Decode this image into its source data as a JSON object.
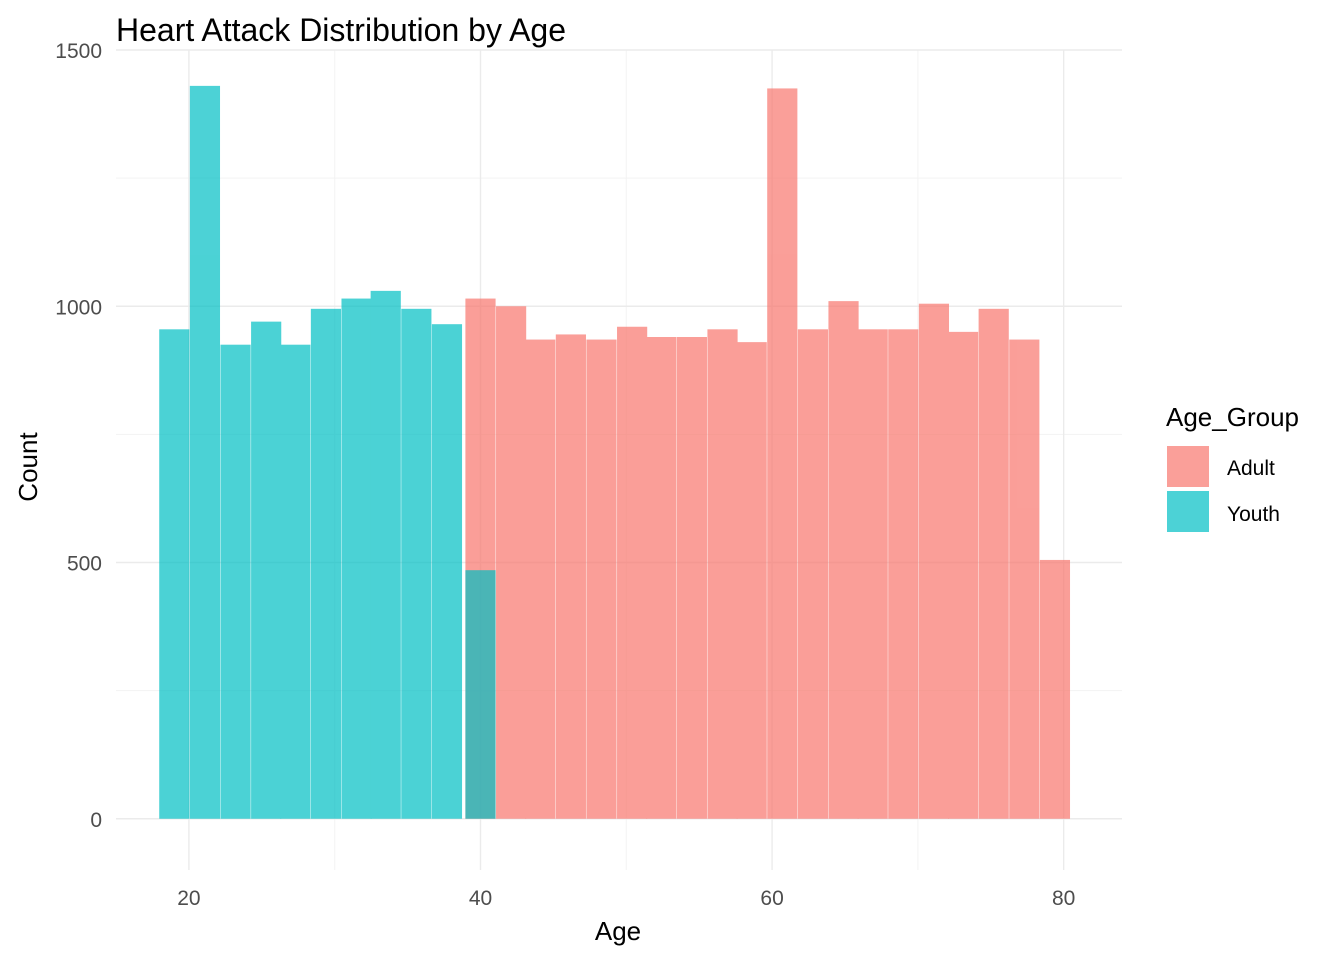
{
  "chart_data": {
    "type": "bar",
    "subtype": "stacked-histogram",
    "title": "Heart Attack Distribution by Age",
    "xlabel": "Age",
    "ylabel": "Count",
    "xlim": [
      15,
      84
    ],
    "ylim": [
      -100,
      1500
    ],
    "x_ticks": [
      20,
      40,
      60,
      80
    ],
    "y_ticks": [
      0,
      500,
      1000,
      1500
    ],
    "grid": true,
    "legend_position": "right",
    "legend_title": "Age_Group",
    "bin_width": 2.07,
    "series": [
      {
        "name": "Adult",
        "color": "#F8766D",
        "bins": [
          {
            "x": 40.0,
            "count": 1015
          },
          {
            "x": 42.1,
            "count": 1000
          },
          {
            "x": 44.1,
            "count": 935
          },
          {
            "x": 46.2,
            "count": 945
          },
          {
            "x": 48.3,
            "count": 935
          },
          {
            "x": 50.4,
            "count": 960
          },
          {
            "x": 52.4,
            "count": 940
          },
          {
            "x": 54.5,
            "count": 940
          },
          {
            "x": 56.6,
            "count": 955
          },
          {
            "x": 58.6,
            "count": 930
          },
          {
            "x": 60.7,
            "count": 1425
          },
          {
            "x": 62.8,
            "count": 955
          },
          {
            "x": 64.9,
            "count": 1010
          },
          {
            "x": 66.9,
            "count": 955
          },
          {
            "x": 69.0,
            "count": 955
          },
          {
            "x": 71.1,
            "count": 1005
          },
          {
            "x": 73.1,
            "count": 950
          },
          {
            "x": 75.2,
            "count": 995
          },
          {
            "x": 77.3,
            "count": 935
          },
          {
            "x": 79.4,
            "count": 505
          }
        ]
      },
      {
        "name": "Youth",
        "color": "#00BFC4",
        "bins": [
          {
            "x": 19.0,
            "count": 955
          },
          {
            "x": 21.1,
            "count": 1430
          },
          {
            "x": 23.2,
            "count": 925
          },
          {
            "x": 25.3,
            "count": 970
          },
          {
            "x": 27.3,
            "count": 925
          },
          {
            "x": 29.4,
            "count": 995
          },
          {
            "x": 31.5,
            "count": 1015
          },
          {
            "x": 33.5,
            "count": 1030
          },
          {
            "x": 35.6,
            "count": 995
          },
          {
            "x": 37.7,
            "count": 965
          },
          {
            "x": 40.0,
            "count": 485
          }
        ]
      }
    ]
  }
}
